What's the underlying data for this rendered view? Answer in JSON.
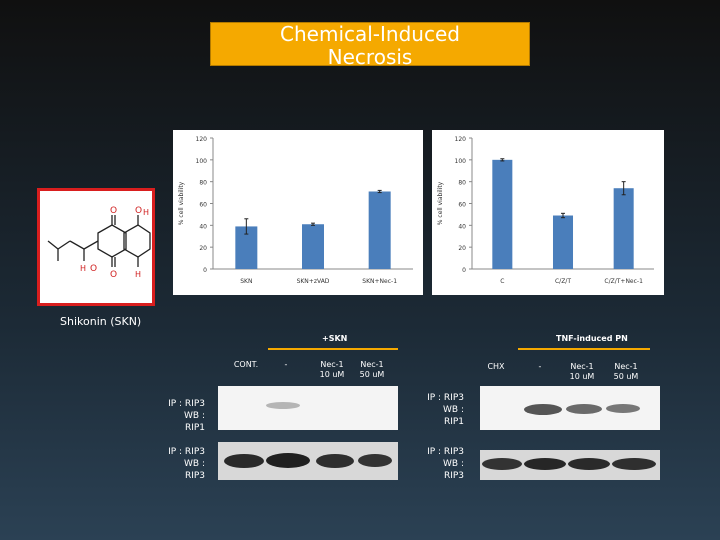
{
  "slide": {
    "title_line1": "Chemical-Induced",
    "title_line2": "Necrosis",
    "structure_caption": "Shikonin (SKN)"
  },
  "chart_data": [
    {
      "type": "bar",
      "categories": [
        "SKN",
        "SKN+zVAD",
        "SKN+Nec-1"
      ],
      "values": [
        39,
        41,
        71
      ],
      "errors": [
        7,
        1,
        1
      ],
      "ylabel": "% cell viability",
      "ylim": [
        0,
        120
      ],
      "yticks": [
        "0",
        "20",
        "40",
        "60",
        "80",
        "100",
        "120"
      ],
      "grid": false,
      "color": "#4a7ebb"
    },
    {
      "type": "bar",
      "categories": [
        "C",
        "C/Z/T",
        "C/Z/T+Nec-1"
      ],
      "values": [
        100,
        49,
        74
      ],
      "errors": [
        1,
        2,
        6
      ],
      "ylabel": "% cell viability",
      "ylim": [
        0,
        120
      ],
      "yticks": [
        "0",
        "20",
        "40",
        "60",
        "80",
        "100",
        "120"
      ],
      "grid": false,
      "color": "#4a7ebb"
    }
  ],
  "blots": {
    "left": {
      "header": "+SKN",
      "columns": [
        "CONT.",
        "-",
        "Nec-1\n10 uM",
        "Nec-1\n50 uM"
      ],
      "row1_label": "IP : RIP3\nWB :\nRIP1",
      "row2_label": "IP : RIP3\nWB :\nRIP3"
    },
    "right": {
      "header": "TNF-induced PN",
      "columns": [
        "CHX",
        "-",
        "Nec-1\n10 uM",
        "Nec-1\n50 uM"
      ],
      "row1_label": "IP : RIP3\nWB :\nRIP1",
      "row2_label": "IP : RIP3\nWB :\nRIP3"
    }
  },
  "structure_atoms": [
    "O",
    "H",
    "O",
    "H",
    "O",
    "O",
    "H"
  ]
}
